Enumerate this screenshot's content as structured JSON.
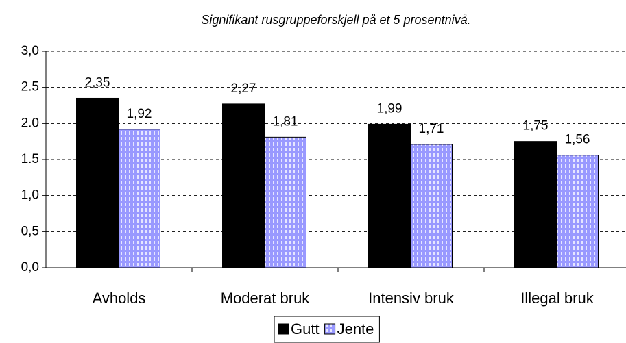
{
  "chart_data": {
    "type": "bar",
    "title": "Signifikant rusgruppeforskjell på et 5 prosentnivå.",
    "categories": [
      "Avholds",
      "Moderat bruk",
      "Intensiv bruk",
      "Illegal bruk"
    ],
    "series": [
      {
        "name": "Gutt",
        "color": "#000000",
        "values": [
          2.35,
          2.27,
          1.99,
          1.75
        ],
        "value_labels": [
          "2,35",
          "2,27",
          "1,99",
          "1,75"
        ]
      },
      {
        "name": "Jente",
        "color": "#9999ff",
        "values": [
          1.92,
          1.81,
          1.71,
          1.56
        ],
        "value_labels": [
          "1,92",
          "1,81",
          "1,71",
          "1,56"
        ]
      }
    ],
    "ylim": [
      0,
      3
    ],
    "yticks": [
      {
        "value": 0,
        "label": "0,0"
      },
      {
        "value": 0.5,
        "label": "0,5"
      },
      {
        "value": 1,
        "label": "1,0"
      },
      {
        "value": 1.5,
        "label": "1.5"
      },
      {
        "value": 2,
        "label": "2.0"
      },
      2.5,
      {
        "value": 3,
        "label": "3,0"
      }
    ],
    "grid": true
  }
}
